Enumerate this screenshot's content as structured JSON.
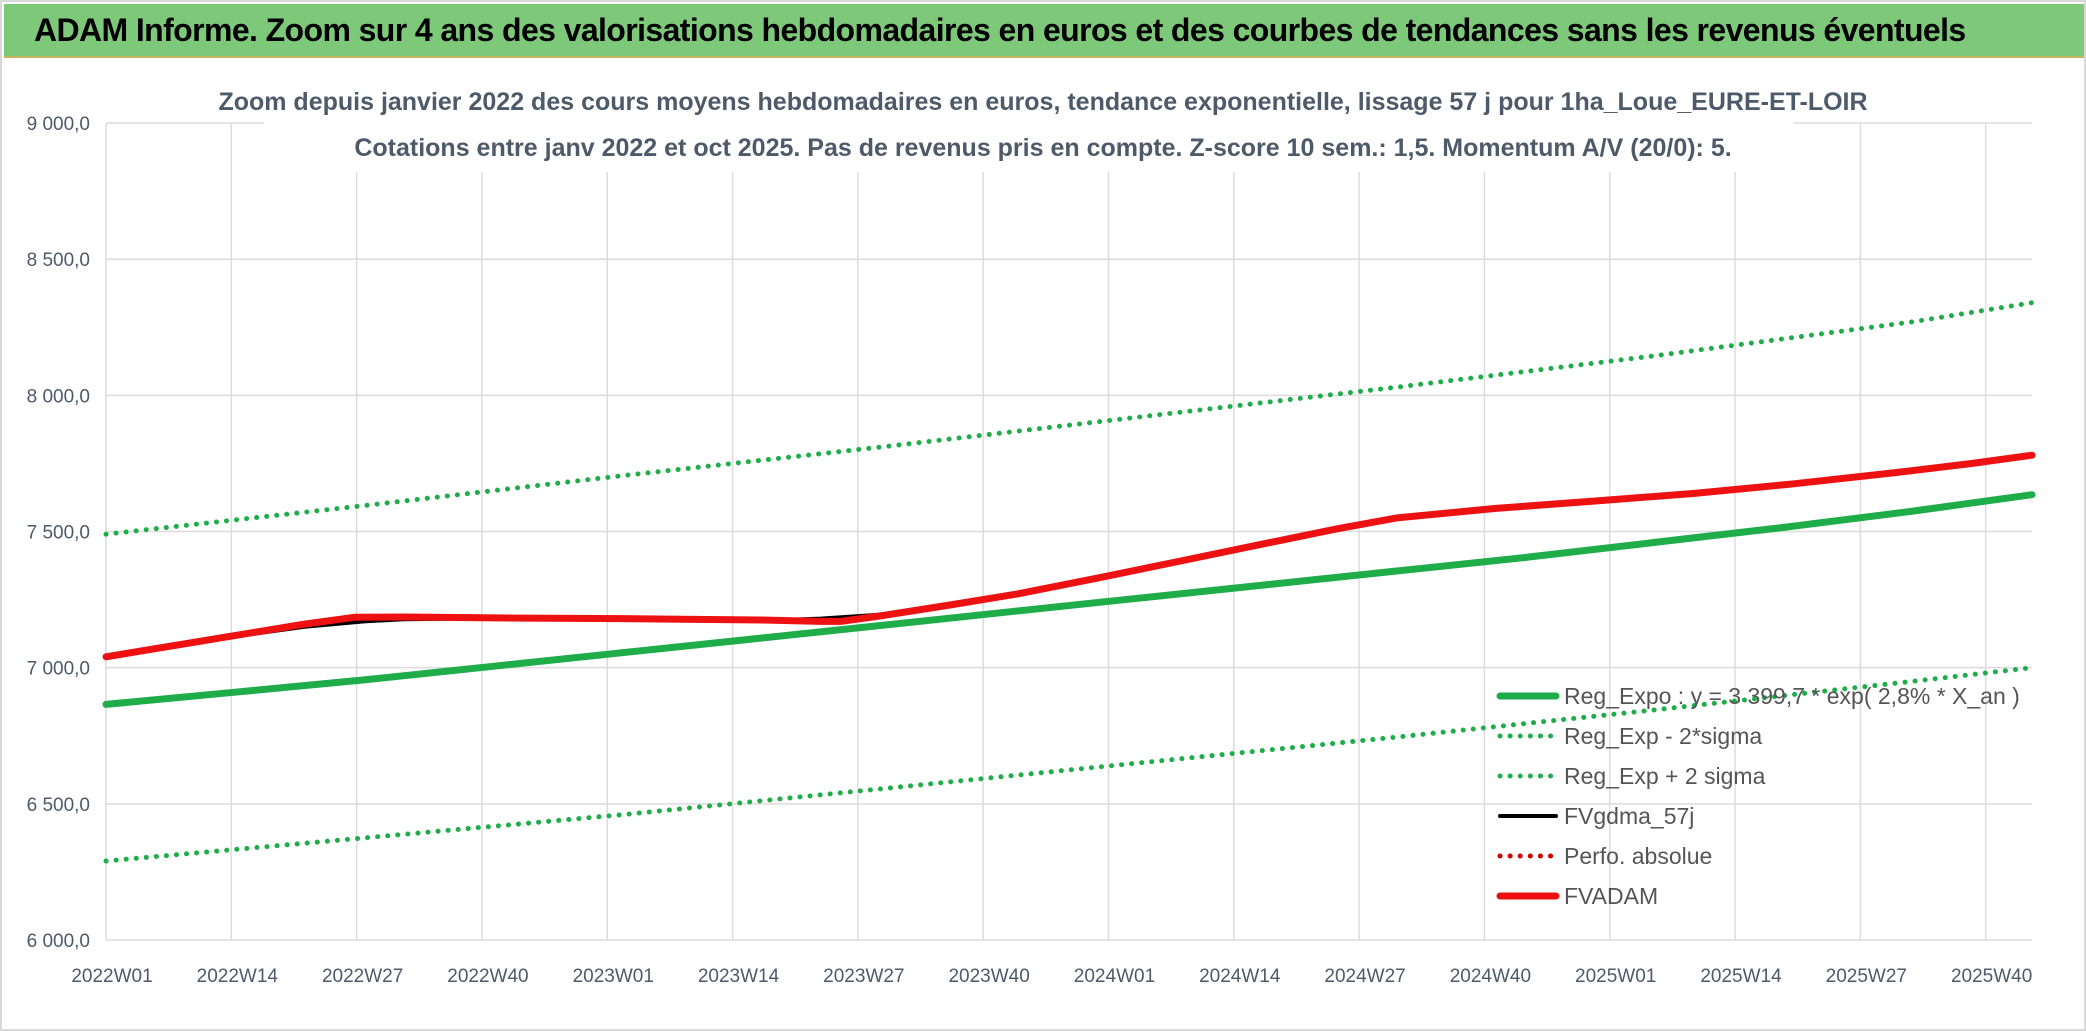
{
  "header": {
    "banner_text": "ADAM Informe. Zoom sur 4 ans des valorisations hebdomadaires en euros et des courbes de tendances sans les revenus éventuels"
  },
  "colors": {
    "banner_bg": "#7ec87a",
    "trend_green": "#1fad4a",
    "fvadam_red": "#ee1111",
    "fvgdma_black": "#000000",
    "perfo_red": "#cc0000",
    "grid": "#dcdcdc",
    "axis_text": "#4d5a6a"
  },
  "chart_data": {
    "type": "line",
    "title": [
      "Zoom depuis janvier 2022 des cours moyens hebdomadaires en euros, tendance exponentielle, lissage 57 j pour 1ha_Loue_EURE-ET-LOIR",
      "Cotations entre janv 2022 et oct 2025. Pas de revenus pris en compte. Z-score 10 sem.: 1,5. Momentum A/V (20/0): 5."
    ],
    "x_tick_labels": [
      "2022W01",
      "2022W14",
      "2022W27",
      "2022W40",
      "2023W01",
      "2023W14",
      "2023W27",
      "2023W40",
      "2024W01",
      "2024W14",
      "2024W27",
      "2024W40",
      "2025W01",
      "2025W14",
      "2025W27",
      "2025W40"
    ],
    "y_tick_labels": [
      "6 000,0",
      "6 500,0",
      "7 000,0",
      "7 500,0",
      "8 000,0",
      "8 500,0",
      "9 000,0"
    ],
    "ylim": [
      6000,
      9000
    ],
    "y_ticks": [
      6000,
      6500,
      7000,
      7500,
      8000,
      8500,
      9000
    ],
    "x_range_weeks": [
      0,
      194
    ],
    "grid": true,
    "legend_position": "bottom-right",
    "series": [
      {
        "name": "Reg_Expo : y = 3 399,7 * exp( 2,8% *  X_an )",
        "style": "solid-thick",
        "color": "#1fad4a",
        "points": [
          [
            0,
            6865
          ],
          [
            13,
            6910
          ],
          [
            26,
            6955
          ],
          [
            39,
            7005
          ],
          [
            52,
            7055
          ],
          [
            65,
            7105
          ],
          [
            78,
            7155
          ],
          [
            91,
            7205
          ],
          [
            104,
            7255
          ],
          [
            117,
            7305
          ],
          [
            130,
            7355
          ],
          [
            143,
            7405
          ],
          [
            156,
            7460
          ],
          [
            169,
            7515
          ],
          [
            182,
            7575
          ],
          [
            194,
            7635
          ]
        ]
      },
      {
        "name": "Reg_Exp - 2*sigma",
        "style": "dotted",
        "color": "#1fad4a",
        "points": [
          [
            0,
            6290
          ],
          [
            26,
            6375
          ],
          [
            52,
            6460
          ],
          [
            78,
            6555
          ],
          [
            104,
            6650
          ],
          [
            130,
            6745
          ],
          [
            156,
            6845
          ],
          [
            182,
            6950
          ],
          [
            194,
            7000
          ]
        ]
      },
      {
        "name": "Reg_Exp + 2 sigma",
        "style": "dotted",
        "color": "#1fad4a",
        "points": [
          [
            0,
            7490
          ],
          [
            26,
            7595
          ],
          [
            52,
            7705
          ],
          [
            78,
            7810
          ],
          [
            104,
            7920
          ],
          [
            130,
            8030
          ],
          [
            156,
            8145
          ],
          [
            182,
            8270
          ],
          [
            194,
            8340
          ]
        ]
      },
      {
        "name": "FVgdma_57j",
        "style": "solid",
        "color": "#000000",
        "points": [
          [
            0,
            7040
          ],
          [
            10,
            7100
          ],
          [
            20,
            7150
          ],
          [
            26,
            7170
          ],
          [
            30,
            7178
          ],
          [
            40,
            7182
          ],
          [
            60,
            7175
          ],
          [
            68,
            7175
          ],
          [
            72,
            7180
          ],
          [
            78,
            7195
          ],
          [
            85,
            7230
          ],
          [
            92,
            7275
          ],
          [
            100,
            7330
          ],
          [
            108,
            7390
          ],
          [
            116,
            7450
          ],
          [
            124,
            7510
          ],
          [
            130,
            7550
          ],
          [
            140,
            7585
          ],
          [
            150,
            7610
          ],
          [
            160,
            7640
          ],
          [
            170,
            7675
          ],
          [
            180,
            7715
          ],
          [
            188,
            7750
          ],
          [
            194,
            7780
          ]
        ]
      },
      {
        "name": "Perfo. absolue",
        "style": "dotted",
        "color": "#cc0000",
        "points": []
      },
      {
        "name": "FVADAM",
        "style": "solid-thick",
        "color": "#ee1111",
        "points": [
          [
            0,
            7040
          ],
          [
            10,
            7100
          ],
          [
            20,
            7160
          ],
          [
            25,
            7185
          ],
          [
            30,
            7186
          ],
          [
            42,
            7182
          ],
          [
            52,
            7180
          ],
          [
            58,
            7178
          ],
          [
            66,
            7175
          ],
          [
            72,
            7170
          ],
          [
            74,
            7170
          ],
          [
            78,
            7190
          ],
          [
            85,
            7230
          ],
          [
            92,
            7272
          ],
          [
            100,
            7330
          ],
          [
            108,
            7390
          ],
          [
            116,
            7450
          ],
          [
            124,
            7510
          ],
          [
            130,
            7550
          ],
          [
            140,
            7585
          ],
          [
            150,
            7612
          ],
          [
            160,
            7640
          ],
          [
            170,
            7675
          ],
          [
            180,
            7715
          ],
          [
            188,
            7750
          ],
          [
            194,
            7780
          ]
        ]
      }
    ]
  }
}
